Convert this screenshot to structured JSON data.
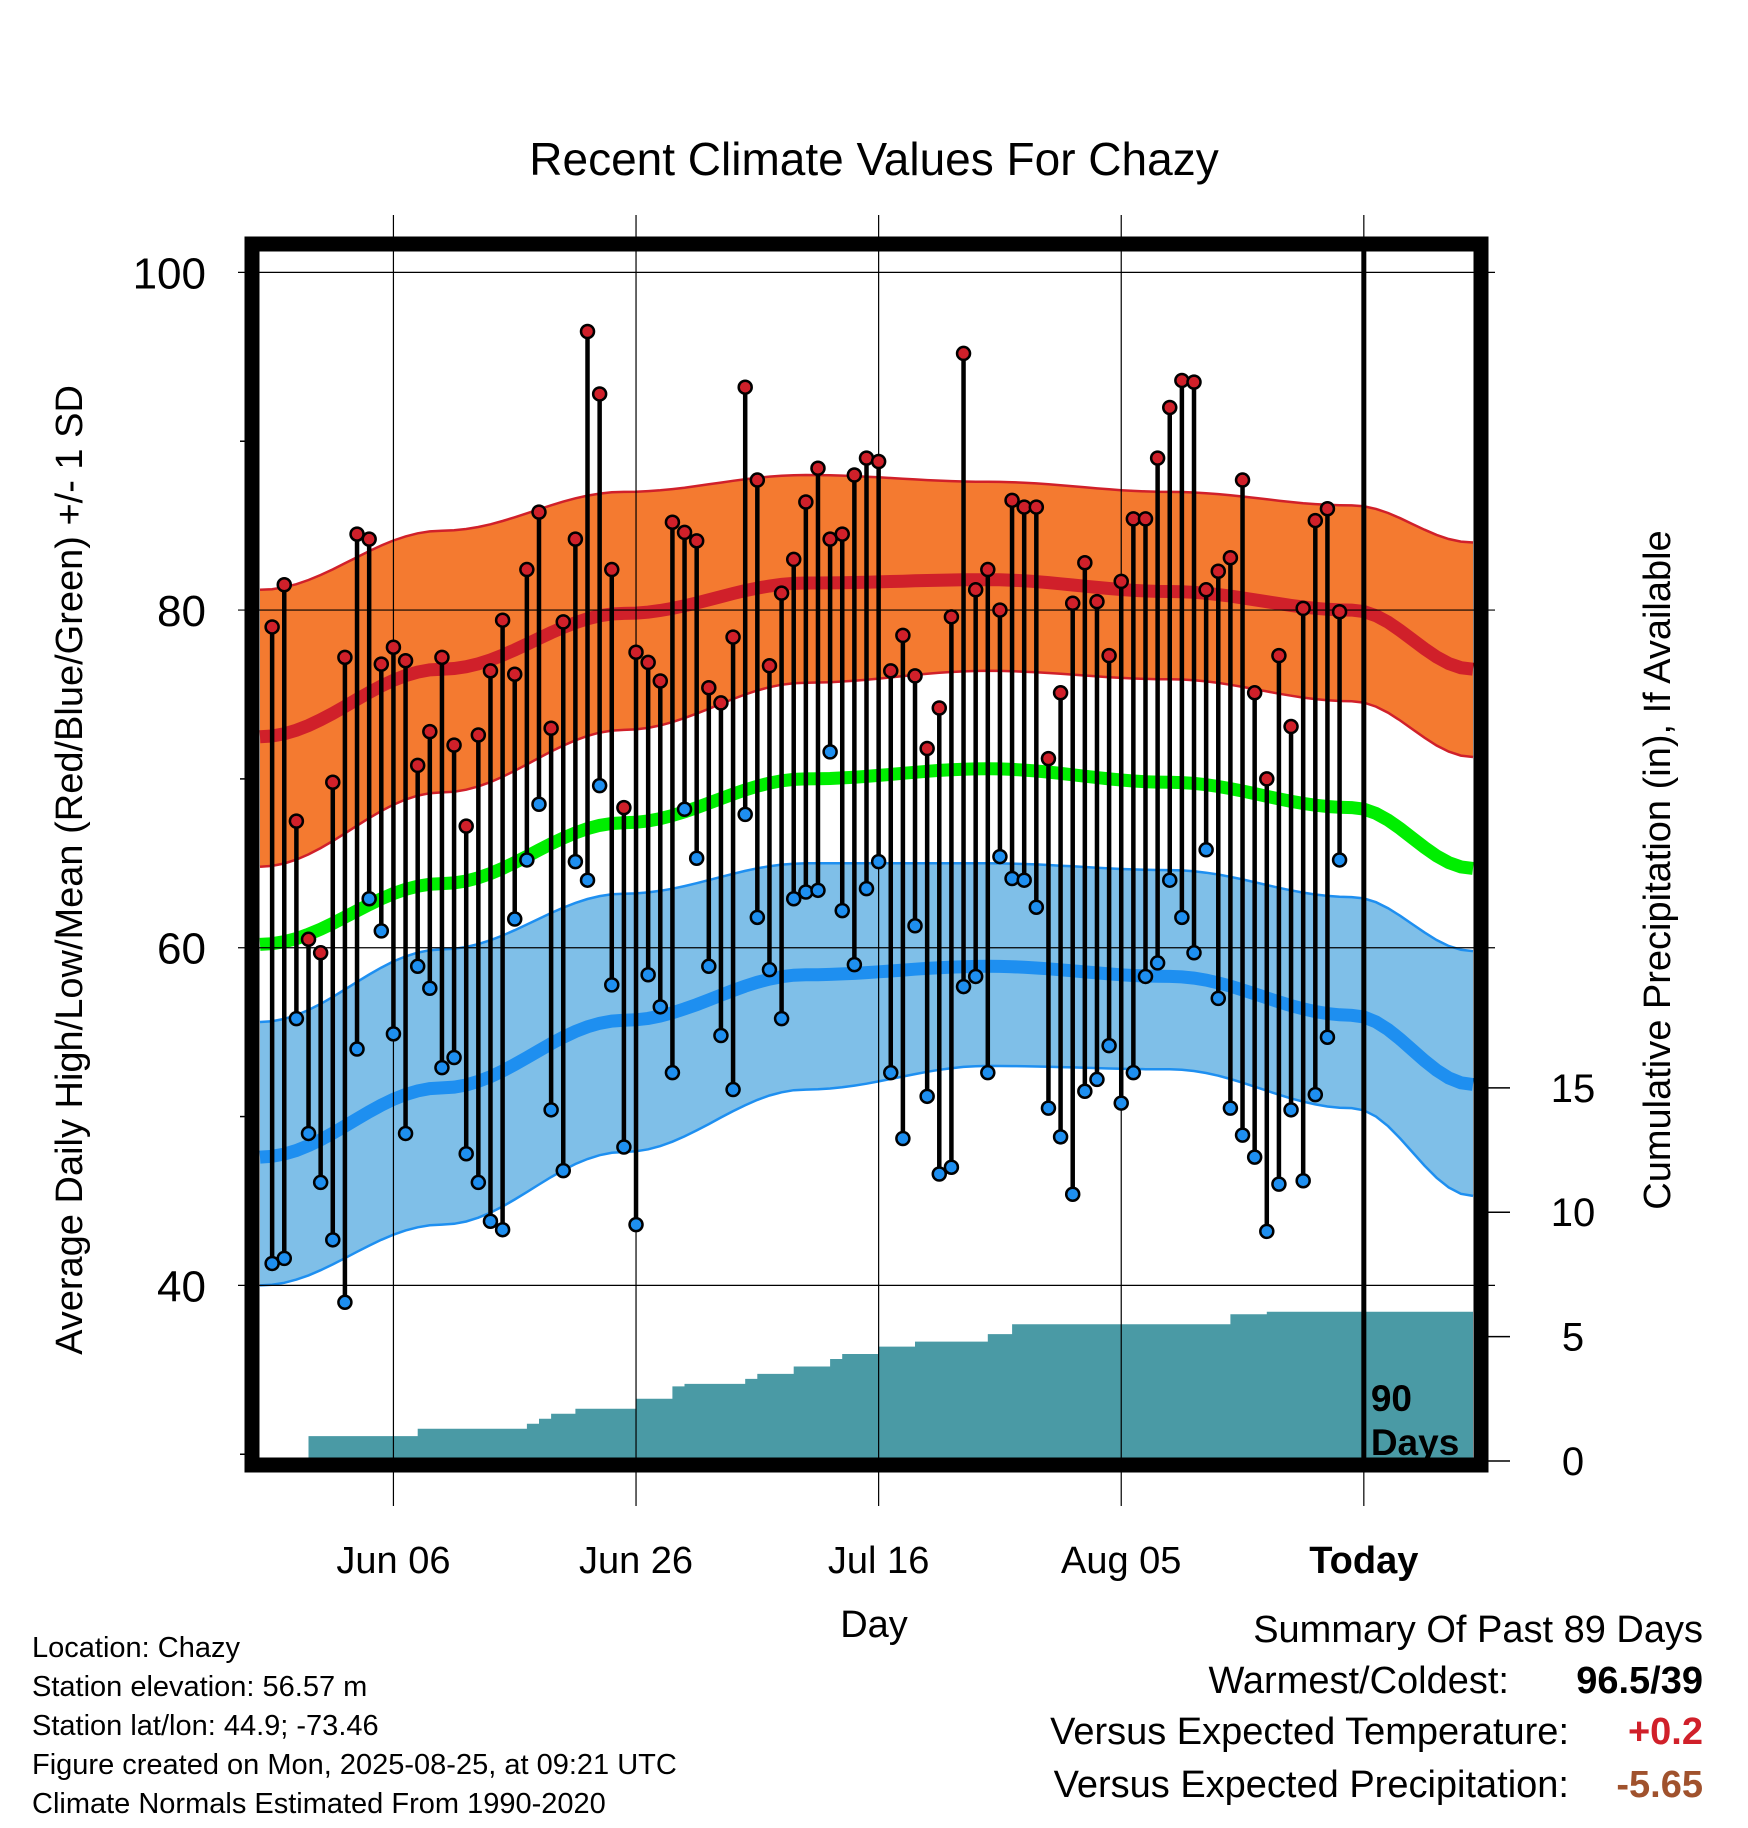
{
  "chart_data": {
    "type": "line",
    "title": "Recent Climate Values For Chazy",
    "xlabel": "Day",
    "ylabel_left": "Average Daily High/Low/Mean (Red/Blue/Green) +/- 1 SD",
    "ylabel_right": "Cumulative Precipitation (in), If Available",
    "x_tick_labels": [
      "Jun 06",
      "Jun 26",
      "Jul 16",
      "Aug 05",
      "Today"
    ],
    "x_tick_days": [
      11,
      31,
      51,
      71,
      91
    ],
    "y_left_ticks": [
      40,
      60,
      80,
      100
    ],
    "y_right_ticks": [
      0,
      5,
      10,
      15
    ],
    "ylim_left": [
      29.6,
      101.8
    ],
    "ylim_right": [
      0,
      49
    ],
    "xlim_days": [
      0,
      100
    ],
    "grid": true,
    "today_label": "90\nDays",
    "today_day": 91,
    "normals": {
      "high_mean": [
        72.5,
        76.5,
        79.8,
        81.6,
        81.8,
        81.1,
        80.0,
        76.5
      ],
      "high_sd_upper": [
        81.2,
        84.7,
        87.0,
        88.0,
        87.6,
        87.0,
        86.2,
        84.0
      ],
      "high_sd_lower": [
        64.8,
        69.2,
        72.9,
        75.7,
        76.4,
        75.9,
        74.6,
        71.3
      ],
      "mean": [
        60.2,
        63.8,
        67.4,
        70.0,
        70.6,
        69.8,
        68.3,
        64.7
      ],
      "low_mean": [
        47.6,
        51.7,
        55.7,
        58.4,
        58.9,
        58.3,
        56.0,
        51.9
      ],
      "low_sd_upper": [
        55.6,
        59.9,
        63.2,
        65.0,
        65.0,
        64.6,
        63.0,
        59.8
      ],
      "low_sd_lower": [
        40.0,
        43.6,
        47.9,
        51.6,
        53.0,
        52.8,
        50.5,
        45.3
      ],
      "days": [
        0,
        15,
        30,
        45,
        60,
        75,
        90,
        100
      ]
    },
    "daily_high": [
      79,
      81.5,
      67.5,
      60.5,
      59.7,
      69.8,
      77.2,
      84.5,
      84.2,
      76.8,
      77.8,
      77.0,
      70.8,
      72.8,
      77.2,
      72.0,
      67.2,
      72.6,
      76.4,
      79.4,
      76.2,
      82.4,
      85.8,
      73.0,
      79.3,
      84.2,
      96.5,
      92.8,
      82.4,
      68.3,
      77.5,
      76.9,
      75.8,
      85.2,
      84.6,
      84.1,
      75.4,
      74.5,
      78.4,
      93.2,
      87.7,
      76.7,
      81.0,
      83.0,
      86.4,
      88.4,
      84.2,
      84.5,
      88.0,
      89.0,
      88.8,
      76.4,
      78.5,
      76.1,
      71.8,
      74.2,
      79.6,
      95.2,
      81.2,
      82.4,
      80.0,
      86.5,
      86.1,
      86.1,
      71.2,
      75.1,
      80.4,
      82.8,
      80.5,
      77.3,
      81.7,
      85.4,
      85.4,
      89.0,
      92.0,
      93.6,
      93.5,
      81.2,
      82.3,
      83.1,
      87.7,
      75.1,
      70.0,
      77.3,
      73.1,
      80.1,
      85.3,
      86.0,
      79.9
    ],
    "daily_low": [
      41.3,
      41.6,
      55.8,
      49.0,
      46.1,
      42.7,
      39.0,
      54.0,
      62.9,
      61.0,
      54.9,
      49.0,
      58.9,
      57.6,
      52.9,
      53.5,
      47.8,
      46.1,
      43.8,
      43.3,
      61.7,
      65.2,
      68.5,
      50.4,
      46.8,
      65.1,
      64.0,
      69.6,
      57.8,
      48.2,
      43.6,
      58.4,
      56.5,
      52.6,
      68.2,
      65.3,
      58.9,
      54.8,
      51.6,
      67.9,
      61.8,
      58.7,
      55.8,
      62.9,
      63.3,
      63.4,
      71.6,
      62.2,
      59.0,
      63.5,
      65.1,
      52.6,
      48.7,
      61.3,
      51.2,
      46.6,
      47.0,
      57.7,
      58.3,
      52.6,
      65.4,
      64.1,
      64.0,
      62.4,
      50.5,
      48.8,
      45.4,
      51.5,
      52.2,
      54.2,
      50.8,
      52.6,
      58.3,
      59.1,
      64.0,
      61.8,
      59.7,
      65.8,
      57.0,
      50.5,
      48.9,
      47.6,
      43.2,
      46.0,
      50.4,
      46.2,
      51.3,
      54.7,
      65.2
    ],
    "cumulative_precip": [
      0,
      0,
      0,
      0,
      1.0,
      1.0,
      1.0,
      1.0,
      1.0,
      1.0,
      1.0,
      1.0,
      1.0,
      1.3,
      1.3,
      1.3,
      1.3,
      1.3,
      1.3,
      1.3,
      1.3,
      1.3,
      1.5,
      1.7,
      1.9,
      1.9,
      2.1,
      2.1,
      2.1,
      2.1,
      2.1,
      2.5,
      2.5,
      2.5,
      3.0,
      3.1,
      3.1,
      3.1,
      3.1,
      3.1,
      3.3,
      3.5,
      3.5,
      3.5,
      3.8,
      3.8,
      3.8,
      4.1,
      4.3,
      4.3,
      4.3,
      4.6,
      4.6,
      4.6,
      4.8,
      4.8,
      4.8,
      4.8,
      4.8,
      4.8,
      5.1,
      5.1,
      5.5,
      5.5,
      5.5,
      5.5,
      5.5,
      5.5,
      5.5,
      5.5,
      5.5,
      5.5,
      5.5,
      5.5,
      5.5,
      5.5,
      5.5,
      5.5,
      5.5,
      5.5,
      5.9,
      5.9,
      5.9,
      6.0,
      6.0,
      6.0,
      6.0,
      6.0,
      6.0,
      6.0,
      6.0,
      6.0,
      6.0,
      6.0,
      6.0,
      6.0,
      6.0,
      6.0,
      6.0,
      6.0
    ],
    "colors": {
      "high_band": "#f47a30",
      "high_line": "#d0202a",
      "mean_line": "#00ee00",
      "low_band": "#7fbfe8",
      "low_line": "#1e8ff0",
      "precip_fill": "#4a9aa5",
      "high_dot": "#d0202a",
      "low_dot": "#1e8ff0"
    }
  },
  "info": {
    "location": "Location: Chazy",
    "elevation": "Station elevation: 56.57 m",
    "latlon": "Station lat/lon: 44.9; -73.46",
    "created": "Figure created on Mon, 2025-08-25, at 09:21 UTC",
    "normals": "Climate Normals Estimated From 1990-2020"
  },
  "summary": {
    "title": "Summary Of Past 89 Days",
    "warmest_label": "Warmest/Coldest:",
    "warmest_value": "96.5/39",
    "temp_label": "Versus Expected Temperature:",
    "temp_value": "+0.2",
    "temp_color": "#d0202a",
    "precip_label": "Versus Expected Precipitation:",
    "precip_value": "-5.65",
    "precip_color": "#a0522d"
  }
}
